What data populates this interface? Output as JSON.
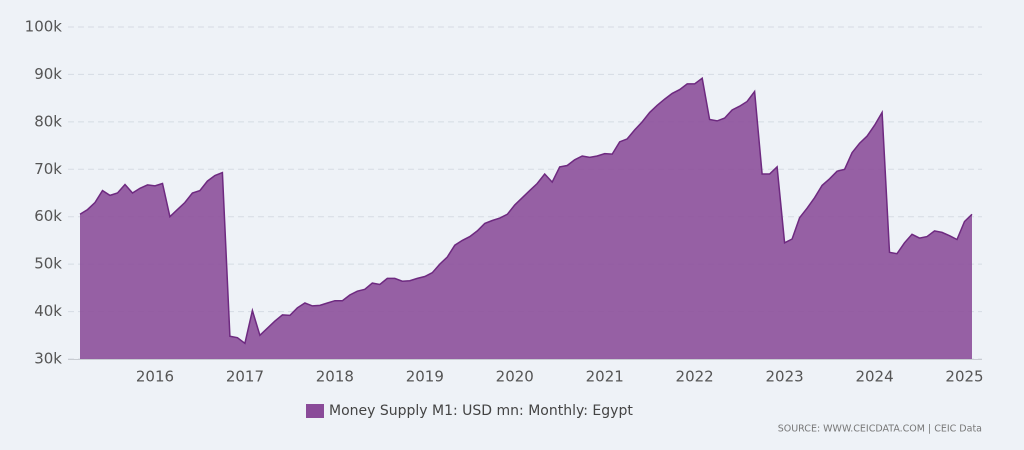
{
  "chart_data": {
    "type": "area",
    "categories": [
      null,
      null,
      null,
      null,
      null,
      null,
      null,
      null,
      null,
      null,
      "2016",
      null,
      null,
      null,
      null,
      null,
      null,
      null,
      null,
      null,
      null,
      null,
      "2017",
      null,
      null,
      null,
      null,
      null,
      null,
      null,
      null,
      null,
      null,
      null,
      "2018",
      null,
      null,
      null,
      null,
      null,
      null,
      null,
      null,
      null,
      null,
      null,
      "2019",
      null,
      null,
      null,
      null,
      null,
      null,
      null,
      null,
      null,
      null,
      null,
      "2020",
      null,
      null,
      null,
      null,
      null,
      null,
      null,
      null,
      null,
      null,
      null,
      "2021",
      null,
      null,
      null,
      null,
      null,
      null,
      null,
      null,
      null,
      null,
      null,
      "2022",
      null,
      null,
      null,
      null,
      null,
      null,
      null,
      null,
      null,
      null,
      null,
      "2023",
      null,
      null,
      null,
      null,
      null,
      null,
      null,
      null,
      null,
      null,
      null,
      "2024",
      null,
      null,
      null,
      null,
      null,
      null,
      null,
      null,
      null,
      null,
      null,
      "2025",
      null
    ],
    "series": [
      {
        "name": "Money Supply M1: USD mn: Monthly: Egypt",
        "color": "#8a4b99",
        "values": [
          60500,
          61500,
          63000,
          65500,
          64500,
          65000,
          66800,
          65000,
          66000,
          66700,
          66500,
          67000,
          60000,
          61500,
          63000,
          65000,
          65500,
          67500,
          68700,
          69300,
          34800,
          34500,
          33300,
          40200,
          35000,
          36500,
          38000,
          39300,
          39200,
          40800,
          41800,
          41200,
          41300,
          41800,
          42300,
          42300,
          43500,
          44300,
          44700,
          46000,
          45700,
          47000,
          47000,
          46400,
          46500,
          47000,
          47400,
          48200,
          50000,
          51500,
          54000,
          55000,
          55800,
          57000,
          58600,
          59200,
          59700,
          60500,
          62500,
          64000,
          65500,
          67000,
          69000,
          67300,
          70500,
          70800,
          72000,
          72800,
          72500,
          72800,
          73300,
          73200,
          75800,
          76400,
          78300,
          80000,
          82000,
          83500,
          84800,
          86000,
          86800,
          88000,
          88000,
          89200,
          80500,
          80200,
          80800,
          82500,
          83300,
          84300,
          86400,
          69000,
          69000,
          70500,
          54500,
          55300,
          59800,
          61800,
          64000,
          66600,
          68000,
          69600,
          70000,
          73500,
          75500,
          77000,
          79300,
          82000,
          52500,
          52200,
          54500,
          56300,
          55500,
          55800,
          57000,
          56700,
          56000,
          55200,
          59000,
          60500
        ]
      }
    ],
    "ylim": [
      30000,
      100000
    ],
    "yticks": [
      {
        "value": 30000,
        "label": "30k"
      },
      {
        "value": 40000,
        "label": "40k"
      },
      {
        "value": 50000,
        "label": "50k"
      },
      {
        "value": 60000,
        "label": "60k"
      },
      {
        "value": 70000,
        "label": "70k"
      },
      {
        "value": 80000,
        "label": "80k"
      },
      {
        "value": 90000,
        "label": "90k"
      },
      {
        "value": 100000,
        "label": "100k"
      }
    ],
    "grid": true,
    "source": "SOURCE: WWW.CEICDATA.COM | CEIC Data"
  }
}
